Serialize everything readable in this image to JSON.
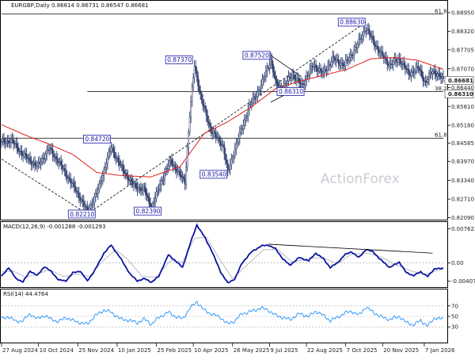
{
  "chart_data": [
    {
      "type": "line",
      "title": "EURGBP,Daily  0.86614 0.86731 0.86547 0.86681",
      "watermark": "ActionForex",
      "ylim": [
        0.8205,
        0.89
      ],
      "y_ticks": [
        "0.88950",
        "0.88320",
        "0.87705",
        "0.87070",
        "0.86440",
        "0.85810",
        "0.85180",
        "0.84585",
        "0.83970",
        "0.83340",
        "0.82710",
        "0.82090"
      ],
      "x_ticks": [
        {
          "label": "27 Aug 2024",
          "i": 0
        },
        {
          "label": "10 Oct 2024",
          "i": 31
        },
        {
          "label": "25 Nov 2024",
          "i": 64
        },
        {
          "label": "10 Jan 2025",
          "i": 97
        },
        {
          "label": "25 Feb 2025",
          "i": 130
        },
        {
          "label": "10 Apr 2025",
          "i": 161
        },
        {
          "label": "26 May 2025",
          "i": 194
        },
        {
          "label": "9 Jul 2025",
          "i": 225
        },
        {
          "label": "22 Aug 2025",
          "i": 256
        },
        {
          "label": "7 Oct 2025",
          "i": 289
        },
        {
          "label": "20 Nov 2025",
          "i": 320
        },
        {
          "label": "7 Jan 2026",
          "i": 355
        }
      ],
      "n_bars": 372,
      "close_anchors": [
        [
          0,
          0.846
        ],
        [
          8,
          0.8468
        ],
        [
          18,
          0.842
        ],
        [
          30,
          0.838
        ],
        [
          40,
          0.844
        ],
        [
          48,
          0.8395
        ],
        [
          58,
          0.833
        ],
        [
          66,
          0.8275
        ],
        [
          72,
          0.8228
        ],
        [
          80,
          0.829
        ],
        [
          92,
          0.8445
        ],
        [
          100,
          0.838
        ],
        [
          110,
          0.832
        ],
        [
          120,
          0.83
        ],
        [
          126,
          0.8241
        ],
        [
          134,
          0.833
        ],
        [
          142,
          0.84
        ],
        [
          150,
          0.835
        ],
        [
          154,
          0.833
        ],
        [
          158,
          0.855
        ],
        [
          162,
          0.872
        ],
        [
          168,
          0.86
        ],
        [
          176,
          0.85
        ],
        [
          186,
          0.845
        ],
        [
          190,
          0.836
        ],
        [
          196,
          0.844
        ],
        [
          208,
          0.858
        ],
        [
          218,
          0.865
        ],
        [
          226,
          0.874
        ],
        [
          230,
          0.866
        ],
        [
          236,
          0.864
        ],
        [
          244,
          0.869
        ],
        [
          252,
          0.865
        ],
        [
          262,
          0.872
        ],
        [
          270,
          0.869
        ],
        [
          278,
          0.874
        ],
        [
          288,
          0.872
        ],
        [
          298,
          0.878
        ],
        [
          306,
          0.8845
        ],
        [
          312,
          0.88
        ],
        [
          318,
          0.876
        ],
        [
          326,
          0.872
        ],
        [
          334,
          0.874
        ],
        [
          342,
          0.869
        ],
        [
          350,
          0.871
        ],
        [
          356,
          0.866
        ],
        [
          362,
          0.87
        ],
        [
          366,
          0.869
        ],
        [
          371,
          0.86681
        ]
      ],
      "ma_anchors": [
        [
          0,
          0.852
        ],
        [
          20,
          0.8485
        ],
        [
          40,
          0.8455
        ],
        [
          60,
          0.842
        ],
        [
          80,
          0.836
        ],
        [
          100,
          0.835
        ],
        [
          125,
          0.8345
        ],
        [
          150,
          0.838
        ],
        [
          170,
          0.849
        ],
        [
          190,
          0.853
        ],
        [
          210,
          0.858
        ],
        [
          230,
          0.864
        ],
        [
          250,
          0.8665
        ],
        [
          270,
          0.8685
        ],
        [
          290,
          0.8705
        ],
        [
          310,
          0.874
        ],
        [
          330,
          0.8745
        ],
        [
          350,
          0.8735
        ],
        [
          371,
          0.8705
        ]
      ],
      "hlines": [
        {
          "label": "61.8",
          "value": 0.889
        },
        {
          "label": "38.2",
          "value": 0.8631
        },
        {
          "label": "61.8",
          "value": 0.8475
        }
      ],
      "trendlines": [
        {
          "from": [
            0,
            0.8405
          ],
          "to": [
            72,
            0.8221
          ],
          "style": "dashed"
        },
        {
          "from": [
            72,
            0.8221
          ],
          "to": [
            306,
            0.8863
          ],
          "style": "dashed"
        },
        {
          "from": [
            226,
            0.8752
          ],
          "to": [
            252,
            0.868
          ],
          "style": "solid"
        },
        {
          "from": [
            226,
            0.8595
          ],
          "to": [
            252,
            0.865
          ],
          "style": "solid"
        }
      ],
      "price_labels": [
        {
          "text": "0.88630",
          "i": 306,
          "value": 0.8863,
          "place": "left"
        },
        {
          "text": "0.87370",
          "i": 161,
          "value": 0.8737,
          "place": "left"
        },
        {
          "text": "0.87520",
          "i": 226,
          "value": 0.8752,
          "place": "left"
        },
        {
          "text": "0.84720",
          "i": 92,
          "value": 0.8472,
          "place": "left"
        },
        {
          "text": "0.83540",
          "i": 190,
          "value": 0.8354,
          "place": "left"
        },
        {
          "text": "0.82390",
          "i": 126,
          "value": 0.8239,
          "place": "left"
        },
        {
          "text": "0.82210",
          "i": 72,
          "value": 0.8221,
          "place": "left"
        },
        {
          "text": "0.86310",
          "i": 252,
          "value": 0.8631,
          "place": "left"
        }
      ],
      "axis_tags": [
        {
          "text": "0.86681",
          "value": 0.86681
        },
        {
          "text": "0.86310",
          "value": 0.8631
        }
      ]
    },
    {
      "type": "line",
      "title": "MACD(12,26,9) -0.001288 -0.001293",
      "ylim": [
        -0.0052,
        0.0088
      ],
      "y_ticks": [
        "0.007623",
        "0.00",
        "-0.004073"
      ],
      "macd_anchors": [
        [
          0,
          -0.003
        ],
        [
          6,
          -0.001
        ],
        [
          12,
          -0.0035
        ],
        [
          18,
          -0.0042
        ],
        [
          24,
          -0.0018
        ],
        [
          30,
          -0.0028
        ],
        [
          36,
          -0.0008
        ],
        [
          42,
          -0.002
        ],
        [
          48,
          -0.0038
        ],
        [
          54,
          -0.004
        ],
        [
          60,
          -0.0022
        ],
        [
          66,
          -0.0018
        ],
        [
          72,
          -0.004
        ],
        [
          78,
          -0.0018
        ],
        [
          86,
          0.0022
        ],
        [
          92,
          0.004
        ],
        [
          100,
          0.001
        ],
        [
          108,
          -0.0025
        ],
        [
          114,
          -0.004
        ],
        [
          120,
          -0.0035
        ],
        [
          126,
          -0.0043
        ],
        [
          132,
          -0.003
        ],
        [
          140,
          0.0018
        ],
        [
          146,
          0.0005
        ],
        [
          152,
          -0.001
        ],
        [
          158,
          0.004
        ],
        [
          164,
          0.0085
        ],
        [
          170,
          0.006
        ],
        [
          176,
          0.003
        ],
        [
          184,
          -0.002
        ],
        [
          190,
          -0.0045
        ],
        [
          196,
          -0.0035
        ],
        [
          202,
          0.0
        ],
        [
          210,
          0.0025
        ],
        [
          218,
          0.0038
        ],
        [
          224,
          0.004
        ],
        [
          230,
          0.0032
        ],
        [
          236,
          0.001
        ],
        [
          242,
          -0.0005
        ],
        [
          250,
          0.0012
        ],
        [
          258,
          0.0005
        ],
        [
          264,
          0.0022
        ],
        [
          270,
          0.001
        ],
        [
          276,
          -0.001
        ],
        [
          282,
          0.0
        ],
        [
          288,
          0.0018
        ],
        [
          294,
          0.0025
        ],
        [
          300,
          0.0012
        ],
        [
          306,
          0.003
        ],
        [
          312,
          0.0025
        ],
        [
          318,
          0.0008
        ],
        [
          326,
          -0.001
        ],
        [
          334,
          0.0002
        ],
        [
          340,
          -0.0022
        ],
        [
          346,
          -0.0028
        ],
        [
          352,
          -0.002
        ],
        [
          358,
          -0.003
        ],
        [
          364,
          -0.0012
        ],
        [
          371,
          -0.001288
        ]
      ],
      "signal_anchors": [
        [
          0,
          -0.002
        ],
        [
          10,
          -0.0018
        ],
        [
          20,
          -0.0032
        ],
        [
          30,
          -0.0025
        ],
        [
          40,
          -0.0015
        ],
        [
          52,
          -0.003
        ],
        [
          64,
          -0.0025
        ],
        [
          74,
          -0.003
        ],
        [
          84,
          0.0002
        ],
        [
          96,
          0.003
        ],
        [
          106,
          0.0008
        ],
        [
          118,
          -0.003
        ],
        [
          130,
          -0.0032
        ],
        [
          142,
          0.0006
        ],
        [
          152,
          0.0002
        ],
        [
          162,
          0.0055
        ],
        [
          172,
          0.0058
        ],
        [
          184,
          0.0005
        ],
        [
          194,
          -0.0035
        ],
        [
          206,
          -0.0005
        ],
        [
          220,
          0.003
        ],
        [
          232,
          0.003
        ],
        [
          244,
          0.0002
        ],
        [
          258,
          0.001
        ],
        [
          270,
          0.0012
        ],
        [
          282,
          -0.0002
        ],
        [
          294,
          0.002
        ],
        [
          308,
          0.0022
        ],
        [
          320,
          0.0012
        ],
        [
          332,
          -0.0005
        ],
        [
          344,
          -0.0018
        ],
        [
          356,
          -0.0025
        ],
        [
          371,
          -0.001293
        ]
      ],
      "trendline": {
        "from": [
          224,
          0.0042
        ],
        "to": [
          362,
          0.0022
        ]
      }
    },
    {
      "type": "line",
      "title": "RSI(14) 44.4764",
      "ylim": [
        0,
        100
      ],
      "y_ticks": [
        "70",
        "50",
        "30"
      ],
      "rsi_anchors": [
        [
          0,
          45
        ],
        [
          6,
          50
        ],
        [
          12,
          40
        ],
        [
          18,
          42
        ],
        [
          24,
          55
        ],
        [
          30,
          45
        ],
        [
          36,
          52
        ],
        [
          42,
          44
        ],
        [
          48,
          40
        ],
        [
          54,
          48
        ],
        [
          60,
          42
        ],
        [
          66,
          38
        ],
        [
          72,
          35
        ],
        [
          78,
          50
        ],
        [
          86,
          62
        ],
        [
          92,
          58
        ],
        [
          100,
          45
        ],
        [
          108,
          42
        ],
        [
          114,
          38
        ],
        [
          120,
          45
        ],
        [
          126,
          35
        ],
        [
          132,
          48
        ],
        [
          140,
          58
        ],
        [
          146,
          50
        ],
        [
          152,
          45
        ],
        [
          158,
          65
        ],
        [
          164,
          78
        ],
        [
          170,
          62
        ],
        [
          176,
          55
        ],
        [
          184,
          48
        ],
        [
          190,
          35
        ],
        [
          196,
          42
        ],
        [
          202,
          55
        ],
        [
          210,
          60
        ],
        [
          218,
          66
        ],
        [
          224,
          62
        ],
        [
          230,
          52
        ],
        [
          236,
          48
        ],
        [
          242,
          44
        ],
        [
          250,
          55
        ],
        [
          258,
          50
        ],
        [
          264,
          60
        ],
        [
          270,
          52
        ],
        [
          276,
          42
        ],
        [
          282,
          48
        ],
        [
          288,
          56
        ],
        [
          294,
          60
        ],
        [
          300,
          52
        ],
        [
          306,
          68
        ],
        [
          312,
          58
        ],
        [
          318,
          50
        ],
        [
          326,
          44
        ],
        [
          334,
          50
        ],
        [
          340,
          38
        ],
        [
          346,
          34
        ],
        [
          352,
          42
        ],
        [
          358,
          32
        ],
        [
          364,
          48
        ],
        [
          371,
          44.4764
        ]
      ]
    }
  ]
}
